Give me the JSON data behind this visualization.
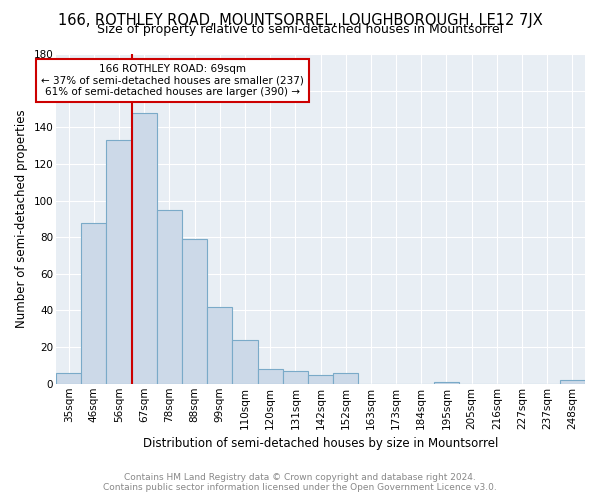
{
  "title": "166, ROTHLEY ROAD, MOUNTSORREL, LOUGHBOROUGH, LE12 7JX",
  "subtitle": "Size of property relative to semi-detached houses in Mountsorrel",
  "xlabel": "Distribution of semi-detached houses by size in Mountsorrel",
  "ylabel": "Number of semi-detached properties",
  "footer_line1": "Contains HM Land Registry data © Crown copyright and database right 2024.",
  "footer_line2": "Contains public sector information licensed under the Open Government Licence v3.0.",
  "categories": [
    "35sqm",
    "46sqm",
    "56sqm",
    "67sqm",
    "78sqm",
    "88sqm",
    "99sqm",
    "110sqm",
    "120sqm",
    "131sqm",
    "142sqm",
    "152sqm",
    "163sqm",
    "173sqm",
    "184sqm",
    "195sqm",
    "205sqm",
    "216sqm",
    "227sqm",
    "237sqm",
    "248sqm"
  ],
  "values": [
    6,
    88,
    133,
    148,
    95,
    79,
    42,
    24,
    8,
    7,
    5,
    6,
    0,
    0,
    0,
    1,
    0,
    0,
    0,
    0,
    2
  ],
  "bar_color": "#ccd9e8",
  "bar_edge_color": "#7aaac8",
  "property_line_index": 3,
  "property_label": "166 ROTHLEY ROAD: 69sqm",
  "annotation_line1": "← 37% of semi-detached houses are smaller (237)",
  "annotation_line2": "61% of semi-detached houses are larger (390) →",
  "annotation_box_color": "#ffffff",
  "annotation_box_edge": "#cc0000",
  "property_line_color": "#cc0000",
  "ylim": [
    0,
    180
  ],
  "yticks": [
    0,
    20,
    40,
    60,
    80,
    100,
    120,
    140,
    160,
    180
  ],
  "plot_bg_color": "#e8eef4",
  "fig_bg_color": "#ffffff",
  "grid_color": "#ffffff",
  "title_fontsize": 10.5,
  "subtitle_fontsize": 9,
  "axis_label_fontsize": 8.5,
  "tick_fontsize": 7.5,
  "footer_fontsize": 6.5,
  "footer_color": "#888888"
}
